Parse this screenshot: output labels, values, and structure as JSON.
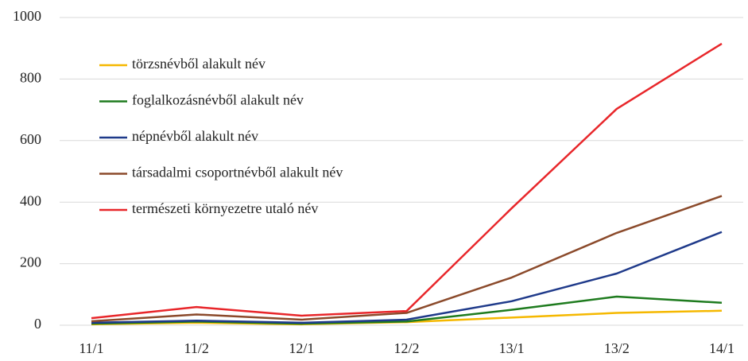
{
  "chart_data": {
    "type": "line",
    "categories": [
      "11/1",
      "11/2",
      "12/1",
      "12/2",
      "13/1",
      "13/2",
      "14/1"
    ],
    "series": [
      {
        "name": "törzsnévből alakult név",
        "color": "#f5b800",
        "values": [
          3,
          8,
          3,
          10,
          25,
          40,
          47
        ]
      },
      {
        "name": "foglalkozásnévből alakult név",
        "color": "#1e7b1e",
        "values": [
          5,
          12,
          5,
          12,
          50,
          93,
          73
        ]
      },
      {
        "name": "népnévből alakult név",
        "color": "#1f3a8a",
        "values": [
          8,
          15,
          8,
          18,
          78,
          168,
          303
        ]
      },
      {
        "name": "társadalmi csoportnévből alakult név",
        "color": "#8b4a2b",
        "values": [
          13,
          35,
          18,
          40,
          155,
          300,
          420
        ]
      },
      {
        "name": "természeti környezetre utaló név",
        "color": "#e8262a",
        "values": [
          23,
          59,
          31,
          46,
          380,
          703,
          915
        ]
      }
    ],
    "ylim": [
      0,
      1000
    ],
    "yticks": [
      0,
      200,
      400,
      600,
      800,
      1000
    ],
    "grid": true,
    "legend": "upper left"
  }
}
